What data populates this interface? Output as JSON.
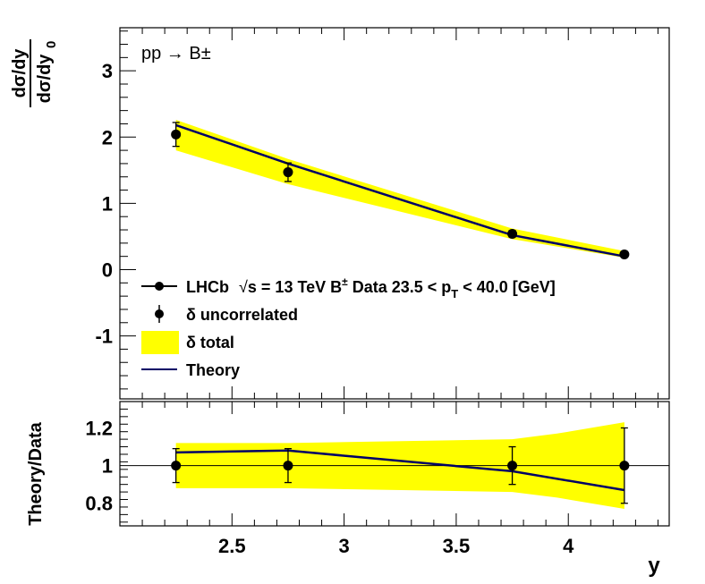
{
  "chart_data": [
    {
      "type": "line",
      "panel": "main",
      "annotation": "pp → B±",
      "ylabel_num": "dσ/dy",
      "ylabel_den": "dσ/dy",
      "ylabel_den_sub": "0",
      "ylim": [
        -1.95,
        3.65
      ],
      "yticks": [
        "-1",
        "0",
        "1",
        "2",
        "3"
      ],
      "grid": false,
      "legend_placement": "bottom-left",
      "legend": {
        "data_label_a": "LHCb",
        "data_label_sqrt": "s",
        "data_label_b": " = 13 TeV B",
        "data_label_sup": "±",
        "data_label_c": " Data 23.5 < p",
        "data_label_sub": "T",
        "data_label_d": " < 40.0 [GeV]",
        "uncorrelated": "δ uncorrelated",
        "total": "δ total",
        "theory": "Theory"
      },
      "x": [
        2.25,
        2.75,
        3.75,
        4.25
      ],
      "data": [
        2.04,
        1.47,
        0.54,
        0.23
      ],
      "data_err": [
        0.18,
        0.14,
        0.05,
        0.03
      ],
      "theory": [
        2.18,
        1.6,
        0.52,
        0.2
      ],
      "total_band": {
        "x": [
          2.25,
          2.75,
          3.75,
          4.25
        ],
        "low": [
          1.8,
          1.29,
          0.46,
          0.18
        ],
        "high": [
          2.26,
          1.67,
          0.62,
          0.28
        ]
      },
      "colors": {
        "band": "#ffff00",
        "theory": "#000066",
        "data": "#000000"
      }
    },
    {
      "type": "line",
      "panel": "ratio",
      "ylabel": "Theory/Data",
      "xlabel": "y",
      "xlim": [
        2.0,
        4.45
      ],
      "ylim": [
        0.68,
        1.34
      ],
      "xticks": [
        "2.5",
        "3",
        "3.5",
        "4"
      ],
      "yticks": [
        "0.8",
        "1",
        "1.2"
      ],
      "grid": false,
      "x": [
        2.25,
        2.75,
        3.75,
        4.25
      ],
      "data_ratio": [
        1.0,
        1.0,
        1.0,
        1.0
      ],
      "data_ratio_err": [
        0.09,
        0.09,
        0.1,
        0.2
      ],
      "theory_ratio": [
        1.07,
        1.08,
        0.97,
        0.87
      ],
      "total_band": {
        "x": [
          2.25,
          2.75,
          3.75,
          3.95,
          4.25
        ],
        "low": [
          0.88,
          0.88,
          0.86,
          0.83,
          0.77
        ],
        "high": [
          1.12,
          1.12,
          1.14,
          1.17,
          1.23
        ]
      },
      "reference_line": 1.0,
      "colors": {
        "band": "#ffff00",
        "theory": "#000066",
        "data": "#000000"
      }
    }
  ]
}
